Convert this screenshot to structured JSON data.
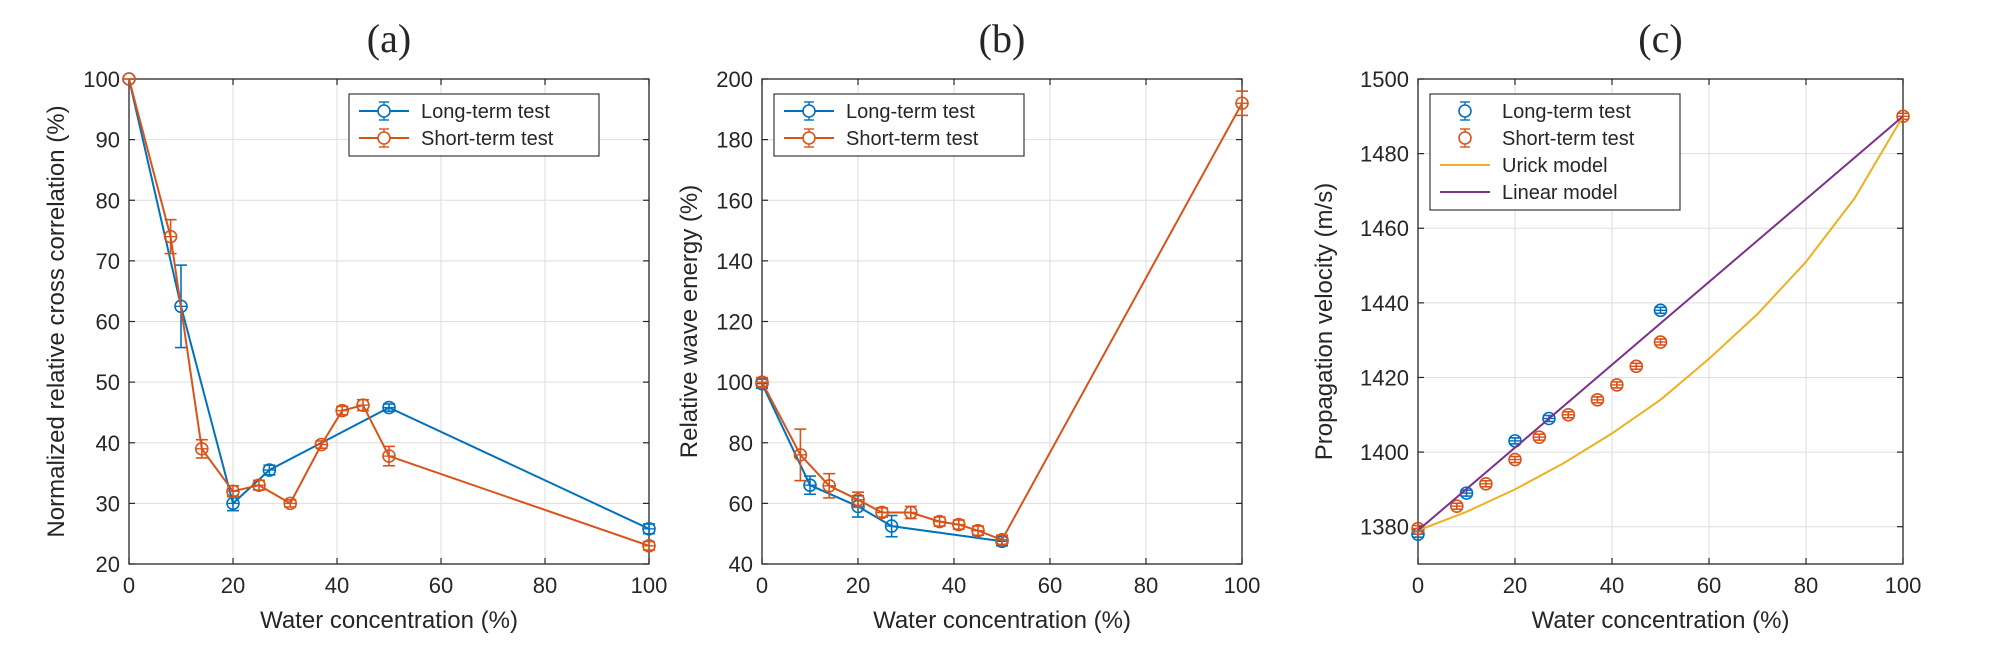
{
  "chart_data": [
    {
      "panel_label": "(a)",
      "type": "line",
      "xlabel": "Water concentration (%)",
      "ylabel": "Normalized relative cross correlation (%)",
      "xlim": [
        0,
        100
      ],
      "ylim": [
        20,
        100
      ],
      "xticks": [
        0,
        20,
        40,
        60,
        80,
        100
      ],
      "yticks": [
        20,
        30,
        40,
        50,
        60,
        70,
        80,
        90,
        100
      ],
      "grid": true,
      "legend_position": "top-right",
      "series": [
        {
          "name": "Long-term test",
          "color": "#0072BD",
          "marker": "circle",
          "errorbars": true,
          "line": true,
          "x": [
            0,
            10,
            20,
            27,
            50,
            100
          ],
          "y": [
            100,
            62.5,
            30,
            35.5,
            45.8,
            25.8
          ],
          "err": [
            0,
            6.8,
            1.2,
            0.8,
            0.6,
            0.8
          ]
        },
        {
          "name": "Short-term test",
          "color": "#D95319",
          "marker": "circle",
          "errorbars": true,
          "line": true,
          "x": [
            0,
            8,
            14,
            20,
            25,
            31,
            37,
            41,
            45,
            50,
            100
          ],
          "y": [
            100,
            74,
            39,
            32,
            33,
            30,
            39.7,
            45.3,
            46.2,
            37.8,
            23
          ],
          "err": [
            0,
            2.8,
            1.5,
            0.9,
            0.8,
            0.6,
            0.6,
            0.7,
            0.9,
            1.6,
            0.7
          ]
        }
      ]
    },
    {
      "panel_label": "(b)",
      "type": "line",
      "xlabel": "Water concentration (%)",
      "ylabel": "Relative wave energy (%)",
      "xlim": [
        0,
        100
      ],
      "ylim": [
        40,
        200
      ],
      "xticks": [
        0,
        20,
        40,
        60,
        80,
        100
      ],
      "yticks": [
        40,
        60,
        80,
        100,
        120,
        140,
        160,
        180,
        200
      ],
      "grid": true,
      "legend_position": "top-left",
      "series": [
        {
          "name": "Long-term test",
          "color": "#0072BD",
          "marker": "circle",
          "errorbars": true,
          "line": true,
          "x": [
            0,
            10,
            20,
            27,
            50
          ],
          "y": [
            99.5,
            66,
            59,
            52.5,
            47.5
          ],
          "err": [
            1.5,
            3,
            3.5,
            3.5,
            1.5
          ]
        },
        {
          "name": "Short-term test",
          "color": "#D95319",
          "marker": "circle",
          "errorbars": true,
          "line": true,
          "x": [
            0,
            8,
            14,
            20,
            25,
            31,
            37,
            41,
            45,
            50,
            100
          ],
          "y": [
            100,
            76,
            65.8,
            61.2,
            57,
            57,
            54,
            53,
            51,
            48,
            192
          ],
          "err": [
            1.5,
            8.5,
            4,
            2.5,
            1.5,
            2,
            1.5,
            1.5,
            1.5,
            1.5,
            4
          ]
        }
      ]
    },
    {
      "panel_label": "(c)",
      "type": "scatter",
      "xlabel": "Water concentration (%)",
      "ylabel": "Propagation velocity (m/s)",
      "xlim": [
        0,
        100
      ],
      "ylim": [
        1370,
        1500
      ],
      "xticks": [
        0,
        20,
        40,
        60,
        80,
        100
      ],
      "yticks": [
        1380,
        1400,
        1420,
        1440,
        1460,
        1480,
        1500
      ],
      "grid": true,
      "legend_position": "top-left",
      "series": [
        {
          "name": "Long-term test",
          "color": "#0072BD",
          "marker": "circle",
          "errorbars": true,
          "line": false,
          "x": [
            0,
            10,
            20,
            27,
            50
          ],
          "y": [
            1378,
            1389,
            1403,
            1409,
            1438
          ],
          "err": [
            0.8,
            0.8,
            0.8,
            0.8,
            0.8
          ]
        },
        {
          "name": "Short-term test",
          "color": "#D95319",
          "marker": "circle",
          "errorbars": true,
          "line": false,
          "x": [
            0,
            8,
            14,
            20,
            25,
            31,
            37,
            41,
            45,
            50,
            100
          ],
          "y": [
            1379.5,
            1385.5,
            1391.5,
            1398,
            1404,
            1410,
            1414,
            1418,
            1423,
            1429.5,
            1490
          ],
          "err": [
            0.8,
            0.8,
            0.8,
            0.8,
            0.8,
            0.8,
            0.8,
            0.8,
            0.8,
            0.8,
            0.8
          ]
        },
        {
          "name": "Urick model",
          "color": "#EDB120",
          "marker": "none",
          "errorbars": false,
          "line": true,
          "x": [
            0,
            10,
            20,
            30,
            40,
            50,
            60,
            70,
            80,
            90,
            100
          ],
          "y": [
            1379,
            1384,
            1390,
            1397,
            1405,
            1414,
            1425,
            1437,
            1451,
            1468,
            1490
          ],
          "err": []
        },
        {
          "name": "Linear model",
          "color": "#7E2F8E",
          "marker": "none",
          "errorbars": false,
          "line": true,
          "x": [
            0,
            100
          ],
          "y": [
            1379,
            1490
          ],
          "err": []
        }
      ]
    }
  ]
}
